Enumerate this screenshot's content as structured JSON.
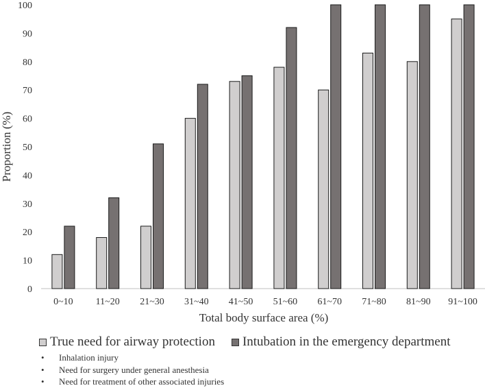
{
  "chart_data": {
    "type": "bar",
    "title": "",
    "xlabel": "Total body surface area (%)",
    "ylabel": "Proportion (%)",
    "ylim": [
      0,
      100
    ],
    "yticks": [
      0,
      10,
      20,
      30,
      40,
      50,
      60,
      70,
      80,
      90,
      100
    ],
    "grid": false,
    "legend_position": "bottom",
    "categories": [
      "0~10",
      "11~20",
      "21~30",
      "31~40",
      "41~50",
      "51~60",
      "61~70",
      "71~80",
      "81~90",
      "91~100"
    ],
    "series": [
      {
        "name": "True need for airway protection",
        "color": "#d0cece",
        "values": [
          12,
          18,
          22,
          60,
          73,
          78,
          70,
          83,
          80,
          95
        ]
      },
      {
        "name": "Intubation in the emergency department",
        "color": "#767171",
        "values": [
          22,
          32,
          51,
          72,
          75,
          92,
          100,
          100,
          100,
          100
        ]
      }
    ]
  },
  "notes": [
    "Inhalation injury",
    "Need for surgery under general anesthesia",
    "Need for treatment of other associated injuries"
  ],
  "bullet_char": "•"
}
